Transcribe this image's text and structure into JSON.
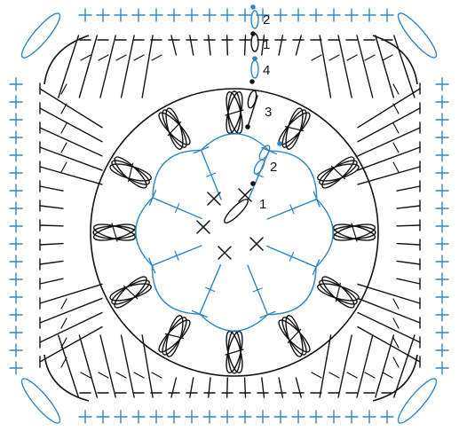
{
  "diagram": {
    "colors": {
      "blue": "#2f86c3",
      "black": "#111111",
      "background": "#ffffff"
    },
    "round_labels": [
      {
        "text": "2",
        "round": 2
      },
      {
        "text": "1",
        "round": 1
      },
      {
        "text": "4",
        "round": 4
      },
      {
        "text": "3",
        "round": 3
      },
      {
        "text": "2",
        "round": 2
      },
      {
        "text": "1",
        "round": 1
      }
    ],
    "stitch_legend_icons": [
      "chain-stitch-icon",
      "single-crochet-icon",
      "double-crochet-icon",
      "treble-crochet-icon",
      "puff-stitch-icon",
      "slip-stitch-icon"
    ]
  }
}
